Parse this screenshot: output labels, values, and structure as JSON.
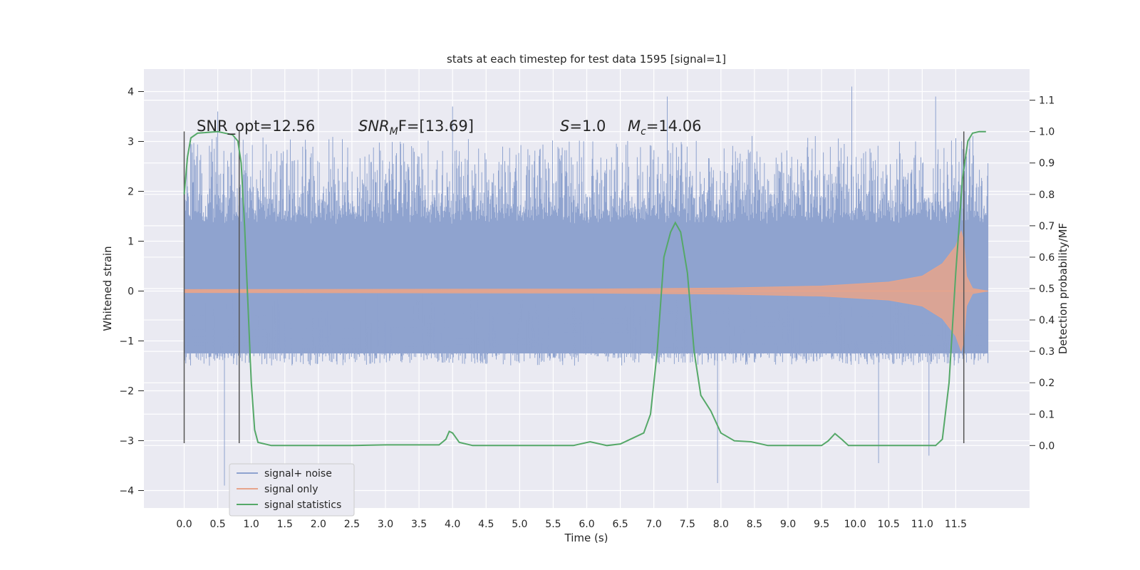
{
  "chart_data": {
    "type": "line",
    "title": "stats at each timestep for test data 1595 [signal=1]",
    "xlabel": "Time (s)",
    "ylabel": "Whitened strain",
    "ylabel_right": "Detection probability/MF",
    "xlim": [
      -0.6,
      12.6
    ],
    "ylim": [
      -4.35,
      4.45
    ],
    "ylim_right": [
      -0.199,
      1.199
    ],
    "xticks": [
      "0.0",
      "0.5",
      "1.0",
      "1.5",
      "2.0",
      "2.5",
      "3.0",
      "3.5",
      "4.0",
      "4.5",
      "5.0",
      "5.5",
      "6.0",
      "6.5",
      "7.0",
      "7.5",
      "8.0",
      "8.5",
      "9.0",
      "9.5",
      "10.0",
      "10.5",
      "11.0",
      "11.5"
    ],
    "yticks": [
      "4",
      "3",
      "2",
      "1",
      "0",
      "−1",
      "−2",
      "−3",
      "−4"
    ],
    "yticks_right": [
      "1.1",
      "1.0",
      "0.9",
      "0.8",
      "0.7",
      "0.6",
      "0.5",
      "0.4",
      "0.3",
      "0.2",
      "0.1",
      "0.0"
    ],
    "grid": true,
    "legend_position": "lower-left",
    "annotations": {
      "snr_opt": "SNR_opt=12.56",
      "snr_mf_sym": "SNR",
      "snr_mf_sub": "M",
      "snr_mf_rest": "F=[13.69]",
      "s_sym": "S",
      "s_rest": "=1.0",
      "mc_sym": "M",
      "mc_sub": "c",
      "mc_rest": "=14.06"
    },
    "series": [
      {
        "name": "signal+ noise",
        "color": "#8fa3cf",
        "x_range": [
          0.0,
          11.98
        ],
        "band_core": [
          -1.25,
          1.35
        ],
        "typical_peak": [
          -2.3,
          2.6
        ],
        "extreme_spikes": [
          {
            "x": 0.5,
            "y": 3.6
          },
          {
            "x": 0.6,
            "y": -3.9
          },
          {
            "x": 4.0,
            "y": 3.7
          },
          {
            "x": 7.2,
            "y": 3.9
          },
          {
            "x": 7.95,
            "y": -3.85
          },
          {
            "x": 9.95,
            "y": 4.1
          },
          {
            "x": 10.35,
            "y": -3.45
          },
          {
            "x": 11.2,
            "y": 3.9
          },
          {
            "x": 11.1,
            "y": -3.3
          }
        ]
      },
      {
        "name": "signal only",
        "color": "#e7a48b",
        "chirp_envelope": [
          {
            "x": 0.0,
            "y": 0.03
          },
          {
            "x": 6.0,
            "y": 0.04
          },
          {
            "x": 8.0,
            "y": 0.06
          },
          {
            "x": 9.5,
            "y": 0.1
          },
          {
            "x": 10.5,
            "y": 0.18
          },
          {
            "x": 11.0,
            "y": 0.3
          },
          {
            "x": 11.3,
            "y": 0.55
          },
          {
            "x": 11.5,
            "y": 0.9
          },
          {
            "x": 11.58,
            "y": 1.2
          },
          {
            "x": 11.62,
            "y": 1.0
          },
          {
            "x": 11.66,
            "y": 0.3
          },
          {
            "x": 11.75,
            "y": 0.05
          },
          {
            "x": 11.98,
            "y": 0.0
          }
        ]
      },
      {
        "name": "signal statistics",
        "color": "#55a868",
        "axis": "right",
        "points": [
          {
            "x": 0.0,
            "y": 0.8
          },
          {
            "x": 0.05,
            "y": 0.92
          },
          {
            "x": 0.1,
            "y": 0.98
          },
          {
            "x": 0.2,
            "y": 0.995
          },
          {
            "x": 0.5,
            "y": 1.0
          },
          {
            "x": 0.72,
            "y": 0.99
          },
          {
            "x": 0.8,
            "y": 0.97
          },
          {
            "x": 0.85,
            "y": 0.9
          },
          {
            "x": 0.9,
            "y": 0.7
          },
          {
            "x": 0.95,
            "y": 0.45
          },
          {
            "x": 1.0,
            "y": 0.2
          },
          {
            "x": 1.05,
            "y": 0.05
          },
          {
            "x": 1.1,
            "y": 0.01
          },
          {
            "x": 1.3,
            "y": 0.0
          },
          {
            "x": 2.5,
            "y": 0.0
          },
          {
            "x": 3.0,
            "y": 0.002
          },
          {
            "x": 3.8,
            "y": 0.002
          },
          {
            "x": 3.9,
            "y": 0.02
          },
          {
            "x": 3.95,
            "y": 0.045
          },
          {
            "x": 4.0,
            "y": 0.04
          },
          {
            "x": 4.1,
            "y": 0.01
          },
          {
            "x": 4.3,
            "y": 0.0
          },
          {
            "x": 5.8,
            "y": 0.0
          },
          {
            "x": 6.05,
            "y": 0.012
          },
          {
            "x": 6.3,
            "y": 0.0
          },
          {
            "x": 6.5,
            "y": 0.005
          },
          {
            "x": 6.7,
            "y": 0.025
          },
          {
            "x": 6.85,
            "y": 0.04
          },
          {
            "x": 6.95,
            "y": 0.1
          },
          {
            "x": 7.05,
            "y": 0.3
          },
          {
            "x": 7.15,
            "y": 0.6
          },
          {
            "x": 7.25,
            "y": 0.68
          },
          {
            "x": 7.32,
            "y": 0.71
          },
          {
            "x": 7.4,
            "y": 0.68
          },
          {
            "x": 7.5,
            "y": 0.55
          },
          {
            "x": 7.6,
            "y": 0.3
          },
          {
            "x": 7.7,
            "y": 0.16
          },
          {
            "x": 7.85,
            "y": 0.11
          },
          {
            "x": 8.0,
            "y": 0.04
          },
          {
            "x": 8.2,
            "y": 0.015
          },
          {
            "x": 8.45,
            "y": 0.012
          },
          {
            "x": 8.7,
            "y": 0.0
          },
          {
            "x": 9.5,
            "y": 0.0
          },
          {
            "x": 9.6,
            "y": 0.015
          },
          {
            "x": 9.7,
            "y": 0.038
          },
          {
            "x": 9.8,
            "y": 0.02
          },
          {
            "x": 9.9,
            "y": 0.0
          },
          {
            "x": 11.2,
            "y": 0.0
          },
          {
            "x": 11.3,
            "y": 0.02
          },
          {
            "x": 11.4,
            "y": 0.2
          },
          {
            "x": 11.5,
            "y": 0.55
          },
          {
            "x": 11.6,
            "y": 0.85
          },
          {
            "x": 11.68,
            "y": 0.97
          },
          {
            "x": 11.75,
            "y": 0.995
          },
          {
            "x": 11.85,
            "y": 1.0
          },
          {
            "x": 11.95,
            "y": 1.0
          }
        ]
      }
    ],
    "vertical_markers": [
      {
        "x": 0.0,
        "y_range": [
          -3.05,
          3.2
        ]
      },
      {
        "x": 0.82,
        "y_range": [
          -3.05,
          3.2
        ]
      },
      {
        "x": 11.62,
        "y_range": [
          -3.05,
          3.2
        ]
      }
    ]
  }
}
